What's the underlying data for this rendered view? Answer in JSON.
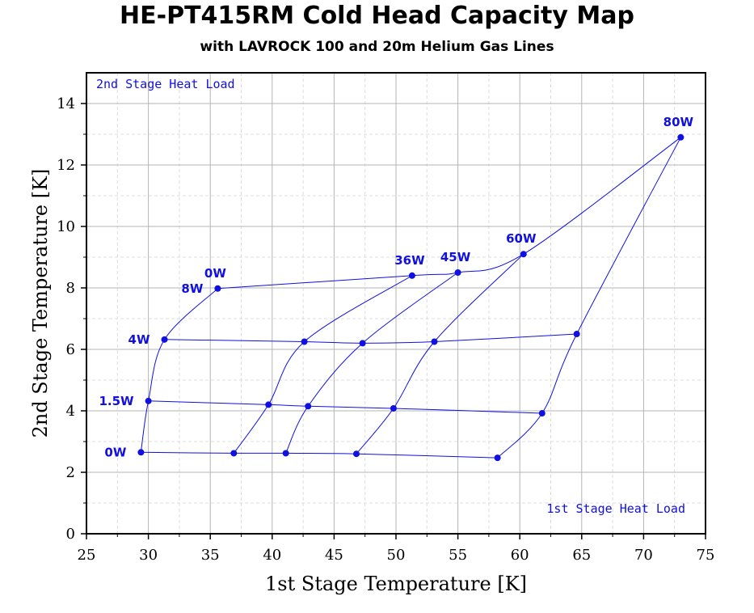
{
  "title": "HE-PT415RM Cold Head Capacity Map",
  "subtitle": "with LAVROCK 100 and 20m Helium Gas Lines",
  "chart_data": {
    "type": "line",
    "title": "HE-PT415RM Cold Head Capacity Map",
    "subtitle": "with LAVROCK 100 and 20m Helium Gas Lines",
    "xlabel": "1st Stage Temperature [K]",
    "ylabel": "2nd Stage Temperature [K]",
    "xlim": [
      25,
      75
    ],
    "ylim": [
      0,
      15
    ],
    "xticks": [
      25,
      30,
      35,
      40,
      45,
      50,
      55,
      60,
      65,
      70,
      75
    ],
    "yticks": [
      0,
      2,
      4,
      6,
      8,
      10,
      12,
      14
    ],
    "grid": true,
    "corner_labels": {
      "top_left": "2nd Stage Heat Load",
      "bottom_right": "1st Stage Heat Load"
    },
    "line_color": "#1010e0",
    "points": [
      {
        "id": "a0",
        "x": 29.4,
        "y": 2.65
      },
      {
        "id": "a1",
        "x": 36.9,
        "y": 2.62
      },
      {
        "id": "a2",
        "x": 41.1,
        "y": 2.62
      },
      {
        "id": "a3",
        "x": 46.8,
        "y": 2.6
      },
      {
        "id": "a4",
        "x": 58.2,
        "y": 2.47
      },
      {
        "id": "b0",
        "x": 30.0,
        "y": 4.32
      },
      {
        "id": "b1",
        "x": 39.7,
        "y": 4.2
      },
      {
        "id": "b2",
        "x": 42.9,
        "y": 4.15
      },
      {
        "id": "b3",
        "x": 49.8,
        "y": 4.08
      },
      {
        "id": "b4",
        "x": 61.8,
        "y": 3.92
      },
      {
        "id": "c0",
        "x": 31.3,
        "y": 6.32
      },
      {
        "id": "c1",
        "x": 42.6,
        "y": 6.25
      },
      {
        "id": "c2",
        "x": 47.3,
        "y": 6.2
      },
      {
        "id": "c3",
        "x": 53.1,
        "y": 6.25
      },
      {
        "id": "c4",
        "x": 64.6,
        "y": 6.5
      },
      {
        "id": "d0",
        "x": 35.6,
        "y": 7.98
      },
      {
        "id": "d1",
        "x": 51.3,
        "y": 8.4
      },
      {
        "id": "d2",
        "x": 55.0,
        "y": 8.5
      },
      {
        "id": "d3",
        "x": 60.3,
        "y": 9.1
      },
      {
        "id": "d4",
        "x": 73.0,
        "y": 12.9
      }
    ],
    "lines": [
      [
        "a0",
        "a1",
        "a2",
        "a3",
        "a4"
      ],
      [
        "b0",
        "b1",
        "b2",
        "b3",
        "b4"
      ],
      [
        "c0",
        "c1",
        "c2",
        "c3",
        "c4"
      ],
      [
        "d0",
        "d1",
        "d2",
        "d3",
        "d4"
      ],
      [
        "a0",
        "b0",
        "c0",
        "d0"
      ],
      [
        "a1",
        "b1",
        "c1",
        "d1"
      ],
      [
        "a2",
        "b2",
        "c2",
        "d2"
      ],
      [
        "a3",
        "b3",
        "c3",
        "d3"
      ],
      [
        "a4",
        "b4",
        "c4",
        "d4"
      ]
    ],
    "labels": [
      {
        "text": "0W",
        "anchor": "a0",
        "pos": "left"
      },
      {
        "text": "1.5W",
        "anchor": "b0",
        "pos": "left"
      },
      {
        "text": "4W",
        "anchor": "c0",
        "pos": "left"
      },
      {
        "text": "8W",
        "anchor": "d0",
        "pos": "left"
      },
      {
        "text": "0W",
        "anchor": "d0",
        "pos": "above"
      },
      {
        "text": "36W",
        "anchor": "d1",
        "pos": "above"
      },
      {
        "text": "45W",
        "anchor": "d2",
        "pos": "above"
      },
      {
        "text": "60W",
        "anchor": "d3",
        "pos": "above"
      },
      {
        "text": "80W",
        "anchor": "d4",
        "pos": "above"
      }
    ]
  }
}
